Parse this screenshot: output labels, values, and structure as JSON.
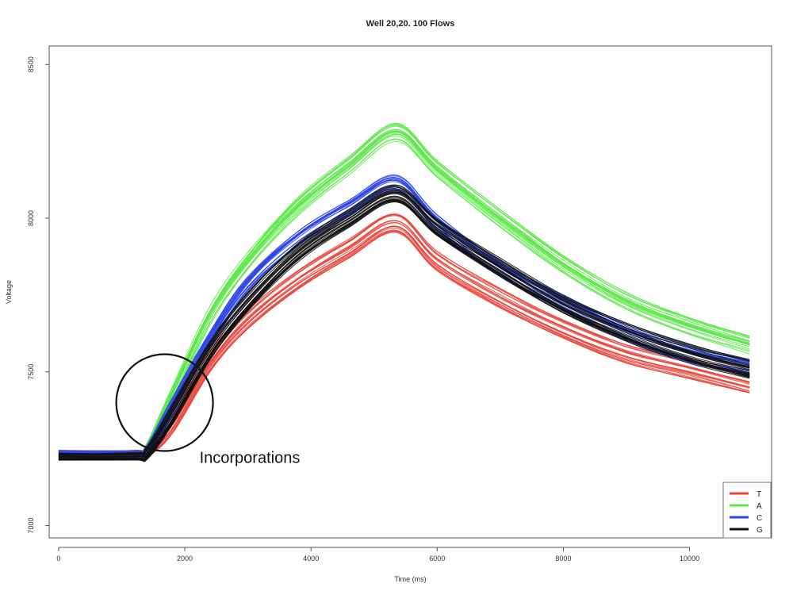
{
  "chart_data": {
    "type": "line",
    "title": "Well 20,20. 100 Flows",
    "xlabel": "Time (ms)",
    "ylabel": "Voltage",
    "xlim": [
      -150,
      11300
    ],
    "ylim": [
      6960,
      8560
    ],
    "x_ticks": [
      0,
      2000,
      4000,
      6000,
      8000,
      10000
    ],
    "x_tick_labels": [
      "0",
      "2000",
      "4000",
      "6000",
      "8000",
      "10000"
    ],
    "y_ticks": [
      7000,
      7500,
      8000,
      8500
    ],
    "y_tick_labels": [
      "7000",
      "7500",
      "8000",
      "8500"
    ],
    "grid": false,
    "legend_position": "bottom-right",
    "x": [
      0,
      1200,
      1400,
      1800,
      2400,
      3000,
      3800,
      4600,
      5350,
      6000,
      7000,
      8000,
      9000,
      10000,
      10950
    ],
    "series": [
      {
        "name": "T",
        "color": "#e8443a",
        "values": [
          7230,
          7230,
          7240,
          7330,
          7530,
          7670,
          7800,
          7900,
          7985,
          7860,
          7740,
          7640,
          7560,
          7510,
          7460
        ]
      },
      {
        "name": "A",
        "color": "#5de84a",
        "values": [
          7225,
          7225,
          7250,
          7420,
          7680,
          7860,
          8040,
          8170,
          8280,
          8160,
          8000,
          7850,
          7730,
          7650,
          7590
        ]
      },
      {
        "name": "C",
        "color": "#2b45e8",
        "values": [
          7235,
          7235,
          7245,
          7390,
          7610,
          7790,
          7940,
          8040,
          8120,
          7990,
          7840,
          7730,
          7630,
          7560,
          7520
        ]
      },
      {
        "name": "G",
        "color": "#111111",
        "values": [
          7225,
          7225,
          7235,
          7360,
          7570,
          7730,
          7890,
          8000,
          8080,
          7970,
          7840,
          7720,
          7630,
          7560,
          7510
        ]
      }
    ],
    "annotations": [
      {
        "text": "Incorporations",
        "type": "circle",
        "x": 1680,
        "y": 7400
      }
    ]
  }
}
